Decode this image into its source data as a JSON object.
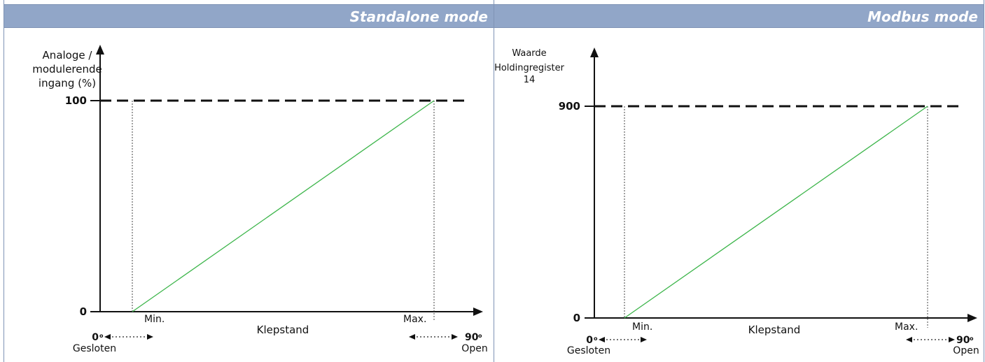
{
  "panels": {
    "left": {
      "title": "Standalone mode"
    },
    "right": {
      "title": "Modbus mode"
    }
  },
  "colors": {
    "header": "#91a6c8",
    "line": "#3cb54a",
    "axis": "#111111"
  },
  "chart_data": [
    {
      "type": "line",
      "title": "Standalone mode",
      "ylabel_lines": [
        "Analoge /",
        "modulerende",
        "ingang (%)"
      ],
      "xlabel": "Klepstand",
      "y_ticks": [
        "0",
        "100"
      ],
      "ylim": [
        0,
        100
      ],
      "x_markers": {
        "min_label": "Min.",
        "max_label": "Max."
      },
      "x_ends": {
        "left_value": "0",
        "left_label": "Gesloten",
        "right_value": "90",
        "right_label": "Open"
      },
      "degree_symbol": "o",
      "series": [
        {
          "x": [
            "Min.",
            "Max."
          ],
          "y": [
            0,
            100
          ]
        }
      ],
      "grid": false
    },
    {
      "type": "line",
      "title": "Modbus mode",
      "ylabel_lines": [
        "Waarde",
        "Holdingregister",
        "14"
      ],
      "xlabel": "Klepstand",
      "y_ticks": [
        "0",
        "900"
      ],
      "ylim": [
        0,
        900
      ],
      "x_markers": {
        "min_label": "Min.",
        "max_label": "Max."
      },
      "x_ends": {
        "left_value": "0",
        "left_label": "Gesloten",
        "right_value": "90",
        "right_label": "Open"
      },
      "degree_symbol": "o",
      "series": [
        {
          "x": [
            "Min.",
            "Max."
          ],
          "y": [
            0,
            900
          ]
        }
      ],
      "grid": false
    }
  ]
}
